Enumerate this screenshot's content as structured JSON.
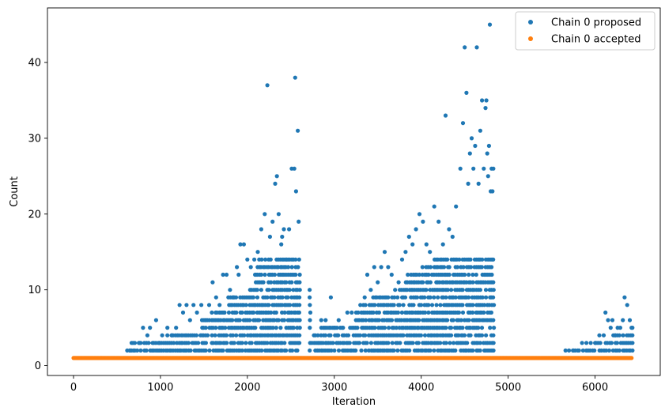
{
  "chart_data": {
    "type": "scatter",
    "title": "",
    "xlabel": "Iteration",
    "ylabel": "Count",
    "xlim": [
      -300,
      6750
    ],
    "ylim": [
      -1.3,
      47.2
    ],
    "xticks": [
      0,
      1000,
      2000,
      3000,
      4000,
      5000,
      6000
    ],
    "yticks": [
      0,
      10,
      20,
      30,
      40
    ],
    "grid": false,
    "legend_position": "top-right",
    "series": [
      {
        "name": "Chain 0 proposed",
        "color": "#1f77b4",
        "points": [
          [
            650,
            2
          ],
          [
            760,
            3
          ],
          [
            800,
            5
          ],
          [
            850,
            4
          ],
          [
            880,
            5
          ],
          [
            950,
            6
          ],
          [
            990,
            3
          ],
          [
            1020,
            4
          ],
          [
            1080,
            5
          ],
          [
            1130,
            4
          ],
          [
            1180,
            5
          ],
          [
            1220,
            8
          ],
          [
            1260,
            7
          ],
          [
            1300,
            8
          ],
          [
            1340,
            6
          ],
          [
            1380,
            8
          ],
          [
            1420,
            7
          ],
          [
            1470,
            8
          ],
          [
            1520,
            6
          ],
          [
            1560,
            8
          ],
          [
            1600,
            11
          ],
          [
            1640,
            9
          ],
          [
            1680,
            8
          ],
          [
            1720,
            12
          ],
          [
            1760,
            12
          ],
          [
            1800,
            10
          ],
          [
            1840,
            9
          ],
          [
            1880,
            13
          ],
          [
            1920,
            16
          ],
          [
            1960,
            16
          ],
          [
            2000,
            14
          ],
          [
            2040,
            13
          ],
          [
            2080,
            14
          ],
          [
            2120,
            15
          ],
          [
            2160,
            18
          ],
          [
            2200,
            20
          ],
          [
            2230,
            37
          ],
          [
            2260,
            17
          ],
          [
            2290,
            19
          ],
          [
            2320,
            24
          ],
          [
            2340,
            25
          ],
          [
            2360,
            20
          ],
          [
            2390,
            16
          ],
          [
            2420,
            18
          ],
          [
            2450,
            14
          ],
          [
            2480,
            18
          ],
          [
            2510,
            26
          ],
          [
            2540,
            26
          ],
          [
            2550,
            38
          ],
          [
            2560,
            23
          ],
          [
            2580,
            31
          ],
          [
            2590,
            19
          ],
          [
            2400,
            17
          ],
          [
            2100,
            12
          ],
          [
            1900,
            12
          ],
          [
            2850,
            6
          ],
          [
            2900,
            6
          ],
          [
            2960,
            9
          ],
          [
            3000,
            5
          ],
          [
            3050,
            6
          ],
          [
            3100,
            5
          ],
          [
            3150,
            7
          ],
          [
            3200,
            7
          ],
          [
            3250,
            6
          ],
          [
            3300,
            8
          ],
          [
            3350,
            9
          ],
          [
            3380,
            12
          ],
          [
            3420,
            10
          ],
          [
            3460,
            13
          ],
          [
            3500,
            11
          ],
          [
            3540,
            13
          ],
          [
            3580,
            15
          ],
          [
            3620,
            13
          ],
          [
            3660,
            12
          ],
          [
            3700,
            10
          ],
          [
            3740,
            11
          ],
          [
            3780,
            14
          ],
          [
            3820,
            15
          ],
          [
            3860,
            17
          ],
          [
            3900,
            16
          ],
          [
            3940,
            18
          ],
          [
            3980,
            20
          ],
          [
            4020,
            19
          ],
          [
            4060,
            16
          ],
          [
            4100,
            15
          ],
          [
            4150,
            21
          ],
          [
            4200,
            19
          ],
          [
            4250,
            16
          ],
          [
            4280,
            33
          ],
          [
            4320,
            18
          ],
          [
            4360,
            17
          ],
          [
            4400,
            21
          ],
          [
            4450,
            26
          ],
          [
            4480,
            32
          ],
          [
            4500,
            42
          ],
          [
            4520,
            36
          ],
          [
            4540,
            24
          ],
          [
            4560,
            28
          ],
          [
            4580,
            30
          ],
          [
            4600,
            26
          ],
          [
            4620,
            29
          ],
          [
            4640,
            42
          ],
          [
            4660,
            24
          ],
          [
            4680,
            31
          ],
          [
            4700,
            35
          ],
          [
            4720,
            26
          ],
          [
            4740,
            34
          ],
          [
            4750,
            35
          ],
          [
            4760,
            28
          ],
          [
            4770,
            25
          ],
          [
            4780,
            29
          ],
          [
            4790,
            45
          ],
          [
            4800,
            23
          ],
          [
            4810,
            26
          ],
          [
            4820,
            23
          ],
          [
            4830,
            26
          ],
          [
            5660,
            2
          ],
          [
            5700,
            2
          ],
          [
            5750,
            2
          ],
          [
            5800,
            2
          ],
          [
            5850,
            3
          ],
          [
            5900,
            3
          ],
          [
            5950,
            3
          ],
          [
            6000,
            3
          ],
          [
            6050,
            4
          ],
          [
            6100,
            4
          ],
          [
            6120,
            7
          ],
          [
            6150,
            6
          ],
          [
            6180,
            5
          ],
          [
            6200,
            6
          ],
          [
            6230,
            4
          ],
          [
            6260,
            5
          ],
          [
            6290,
            5
          ],
          [
            6320,
            6
          ],
          [
            6340,
            9
          ],
          [
            6370,
            8
          ],
          [
            6400,
            6
          ],
          [
            6420,
            5
          ],
          [
            6430,
            5
          ]
        ]
      },
      {
        "name": "Chain 0 accepted",
        "color": "#ff7f0e",
        "x_range": [
          0,
          6430
        ],
        "value": 1
      }
    ]
  }
}
